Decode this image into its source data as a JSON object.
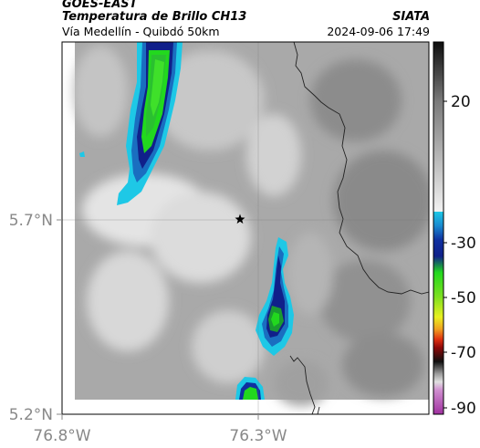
{
  "header": {
    "satellite": "GOES-EAST",
    "product": "Temperatura de Brillo CH13",
    "region": "Vía Medellín - Quibdó 50km",
    "source": "SIATA",
    "timestamp": "2024-09-06 17:49"
  },
  "map": {
    "lat_ticks": [
      "5.7°N",
      "5.2°N"
    ],
    "lon_ticks": [
      "76.8°W",
      "76.3°W"
    ],
    "marker_icon": "star-icon"
  },
  "colorbar": {
    "ticks": [
      "20",
      "-30",
      "-50",
      "-70",
      "-90"
    ],
    "colors": {
      "warm_top": "#1a1a1a",
      "warm_bottom": "#eeeeee",
      "cyan": "#1ec8e6",
      "blue": "#1030a0",
      "green": "#22d81e",
      "yellow": "#e8f020",
      "orange": "#f08020",
      "red": "#e01010",
      "black": "#101010",
      "magenta": "#b040b0"
    }
  }
}
